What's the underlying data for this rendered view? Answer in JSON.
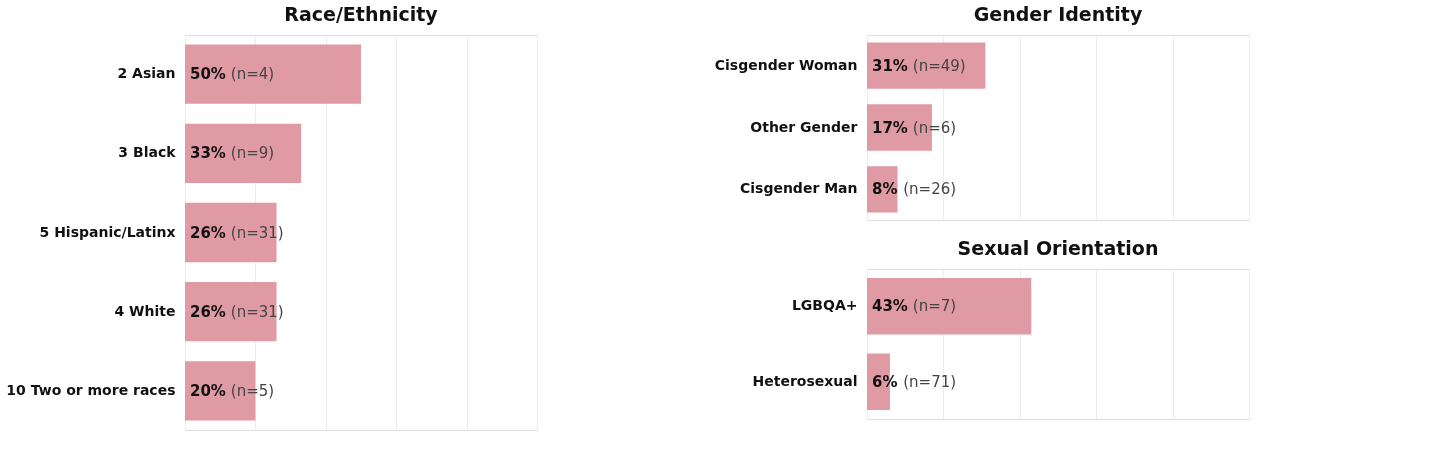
{
  "chart_data": [
    {
      "type": "bar",
      "orientation": "horizontal",
      "title": "Race/Ethnicity",
      "categories": [
        "2 Asian",
        "3 Black",
        "5 Hispanic/Latinx",
        "4 White",
        "10 Two or more races"
      ],
      "values": [
        50,
        33,
        26,
        26,
        20
      ],
      "color": "#e09aa3",
      "value_labels": [
        "50%",
        "33%",
        "26%",
        "26%",
        "20%"
      ],
      "annotations": [
        "(n=4)",
        "(n=9)",
        "(n=31)",
        "(n=31)",
        "(n=5)"
      ],
      "xlim": [
        0,
        100
      ],
      "grid": "x",
      "tick_labels": "y"
    },
    {
      "type": "bar",
      "orientation": "horizontal",
      "title": "Gender Identity",
      "categories": [
        "Cisgender Woman",
        "Other Gender",
        "Cisgender Man"
      ],
      "values": [
        31,
        17,
        8
      ],
      "color": "#e09aa3",
      "value_labels": [
        "31%",
        "17%",
        "8%"
      ],
      "annotations": [
        "(n=49)",
        "(n=6)",
        "(n=26)"
      ],
      "xlim": [
        0,
        100
      ],
      "grid": "x",
      "tick_labels": "y"
    },
    {
      "type": "bar",
      "orientation": "horizontal",
      "title": "Sexual Orientation",
      "categories": [
        "LGBQA+",
        "Heterosexual"
      ],
      "values": [
        43,
        6
      ],
      "color": "#e09aa3",
      "value_labels": [
        "43%",
        "6%"
      ],
      "annotations": [
        "(n=7)",
        "(n=71)"
      ],
      "xlim": [
        0,
        100
      ],
      "grid": "x",
      "tick_labels": "y"
    }
  ]
}
